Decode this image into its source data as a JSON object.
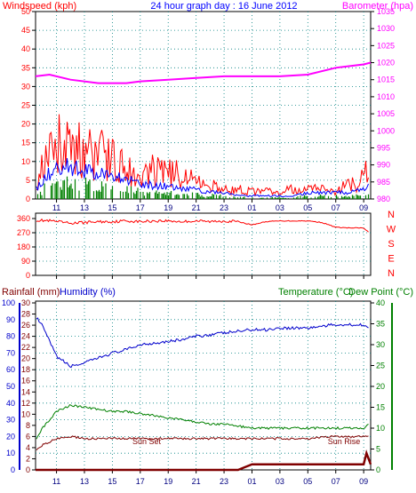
{
  "header": {
    "left_title": "Windspeed (kph)",
    "center_title": "24 hour graph day : 16 June 2012",
    "right_title": "Barometer (hpa)"
  },
  "bottom_header": {
    "rainfall": "Rainfall (mm)",
    "humidity": "Humidity (%)",
    "temperature": "Temperature (°C)",
    "dewpoint": "Dew Point (°C)"
  },
  "annotations": {
    "sunset": "Sun Set",
    "sunrise": "Sun Rise"
  },
  "colors": {
    "gust": "#ff0000",
    "average": "#0000ff",
    "bearing_avg": "#008000",
    "barometer": "#ff00ff",
    "direction": "#ff0000",
    "humidity": "#0000cc",
    "temperature": "#008000",
    "dewpoint": "#800000",
    "rain": "#800000",
    "grid": "#008080"
  },
  "chart_data": [
    {
      "id": "wind",
      "type": "line",
      "time_labels": [
        "11",
        "13",
        "15",
        "17",
        "19",
        "21",
        "23",
        "01",
        "03",
        "05",
        "07",
        "09"
      ],
      "y_left": {
        "label": "Windspeed (kph)",
        "ticks": [
          "0",
          "5",
          "10",
          "15",
          "20",
          "25",
          "30",
          "35",
          "40",
          "45",
          "50"
        ],
        "range": [
          0,
          50
        ]
      },
      "y_right": {
        "label": "Barometer (hpa)",
        "ticks": [
          "980",
          "985",
          "990",
          "995",
          "1000",
          "1005",
          "1010",
          "1015",
          "1020",
          "1025",
          "1030",
          "1035"
        ],
        "range": [
          980,
          1035
        ]
      },
      "series": [
        {
          "name": "gust",
          "envelope": [
            [
              9.5,
              7
            ],
            [
              10.5,
              18
            ],
            [
              11,
              24
            ],
            [
              12,
              22
            ],
            [
              13,
              20
            ],
            [
              14,
              19
            ],
            [
              15,
              17
            ],
            [
              16,
              13
            ],
            [
              17,
              11
            ],
            [
              18,
              12
            ],
            [
              19,
              11
            ],
            [
              20,
              10
            ],
            [
              21,
              8
            ],
            [
              22,
              6
            ],
            [
              23,
              5
            ],
            [
              24,
              4
            ],
            [
              25,
              3
            ],
            [
              26,
              3
            ],
            [
              27,
              3
            ],
            [
              28,
              4
            ],
            [
              29,
              4
            ],
            [
              30,
              4
            ],
            [
              31,
              4
            ],
            [
              32,
              6
            ],
            [
              33,
              9
            ],
            [
              33.5,
              18
            ]
          ]
        },
        {
          "name": "average",
          "envelope": [
            [
              9.5,
              3
            ],
            [
              10.5,
              8
            ],
            [
              11,
              10
            ],
            [
              12,
              10
            ],
            [
              13,
              9
            ],
            [
              14,
              8
            ],
            [
              15,
              7
            ],
            [
              16,
              6
            ],
            [
              17,
              5
            ],
            [
              18,
              4
            ],
            [
              19,
              4
            ],
            [
              20,
              3
            ],
            [
              21,
              3
            ],
            [
              22,
              2
            ],
            [
              23,
              2
            ],
            [
              24,
              1
            ],
            [
              25,
              1
            ],
            [
              26,
              1
            ],
            [
              27,
              1
            ],
            [
              28,
              1
            ],
            [
              29,
              2
            ],
            [
              30,
              2
            ],
            [
              31,
              2
            ],
            [
              32,
              2
            ],
            [
              33,
              3
            ],
            [
              33.5,
              4
            ]
          ]
        },
        {
          "name": "barometer",
          "points": [
            [
              9.5,
              1016
            ],
            [
              10.5,
              1016.5
            ],
            [
              12,
              1015
            ],
            [
              14,
              1014
            ],
            [
              15,
              1014
            ],
            [
              16,
              1014
            ],
            [
              17,
              1014.5
            ],
            [
              19,
              1015
            ],
            [
              21,
              1015.5
            ],
            [
              23,
              1016
            ],
            [
              25,
              1016
            ],
            [
              27,
              1016
            ],
            [
              29,
              1016.5
            ],
            [
              31,
              1018.5
            ],
            [
              33,
              1019.5
            ],
            [
              33.5,
              1020
            ]
          ]
        }
      ]
    },
    {
      "id": "direction",
      "type": "line",
      "time_labels": [
        "11",
        "13",
        "15",
        "17",
        "19",
        "21",
        "23",
        "01",
        "03",
        "05",
        "07",
        "09"
      ],
      "y_left": {
        "ticks": [
          "0",
          "90",
          "180",
          "270",
          "360"
        ],
        "range": [
          0,
          360
        ]
      },
      "compass": [
        "N",
        "W",
        "S",
        "E",
        "N"
      ],
      "series": [
        {
          "name": "direction",
          "points": [
            [
              9.5,
              350
            ],
            [
              10.5,
              345
            ],
            [
              11,
              340
            ],
            [
              12,
              330
            ],
            [
              13,
              335
            ],
            [
              14,
              340
            ],
            [
              15,
              340
            ],
            [
              16,
              345
            ],
            [
              17,
              340
            ],
            [
              18,
              345
            ],
            [
              19,
              345
            ],
            [
              20,
              340
            ],
            [
              21,
              345
            ],
            [
              22,
              340
            ],
            [
              23,
              345
            ],
            [
              24,
              340
            ],
            [
              25,
              320
            ],
            [
              26,
              340
            ],
            [
              27,
              345
            ],
            [
              28,
              345
            ],
            [
              29,
              345
            ],
            [
              30,
              335
            ],
            [
              31,
              305
            ],
            [
              32,
              300
            ],
            [
              33,
              300
            ],
            [
              33.5,
              260
            ]
          ]
        }
      ]
    },
    {
      "id": "temp_hum",
      "type": "line",
      "time_labels": [
        "11",
        "13",
        "15",
        "17",
        "19",
        "21",
        "23",
        "01",
        "03",
        "05",
        "07",
        "09"
      ],
      "y_humidity": {
        "ticks": [
          "0",
          "10",
          "20",
          "30",
          "40",
          "50",
          "60",
          "70",
          "80",
          "90",
          "100"
        ],
        "range": [
          0,
          100
        ]
      },
      "y_rain": {
        "ticks": [
          "0",
          "2",
          "4",
          "6",
          "8",
          "10",
          "12",
          "14",
          "16",
          "18",
          "20",
          "22",
          "24",
          "26",
          "28",
          "30"
        ],
        "range": [
          0,
          30
        ]
      },
      "y_temp": {
        "ticks": [
          "0",
          "5",
          "10",
          "15",
          "20",
          "25",
          "30",
          "35",
          "40"
        ],
        "range": [
          0,
          40
        ]
      },
      "series": [
        {
          "name": "humidity",
          "points": [
            [
              9.5,
              92
            ],
            [
              10,
              86
            ],
            [
              11,
              68
            ],
            [
              12,
              62
            ],
            [
              13,
              64
            ],
            [
              14,
              67
            ],
            [
              15,
              70
            ],
            [
              16,
              72
            ],
            [
              17,
              75
            ],
            [
              18,
              76
            ],
            [
              19,
              77
            ],
            [
              20,
              78
            ],
            [
              21,
              80
            ],
            [
              22,
              81
            ],
            [
              23,
              82
            ],
            [
              24,
              83
            ],
            [
              25,
              84
            ],
            [
              26,
              84
            ],
            [
              27,
              85
            ],
            [
              28,
              85
            ],
            [
              29,
              85
            ],
            [
              30,
              86
            ],
            [
              31,
              87
            ],
            [
              32,
              87
            ],
            [
              33,
              87
            ],
            [
              33.5,
              84
            ]
          ]
        },
        {
          "name": "temperature",
          "points": [
            [
              9.5,
              7
            ],
            [
              10,
              10
            ],
            [
              11,
              14
            ],
            [
              12,
              15.5
            ],
            [
              13,
              15
            ],
            [
              14,
              14.5
            ],
            [
              15,
              14
            ],
            [
              16,
              14
            ],
            [
              17,
              13.5
            ],
            [
              18,
              13
            ],
            [
              19,
              12.5
            ],
            [
              20,
              12
            ],
            [
              21,
              11.5
            ],
            [
              22,
              11
            ],
            [
              23,
              11
            ],
            [
              24,
              10.5
            ],
            [
              25,
              10
            ],
            [
              26,
              10
            ],
            [
              27,
              10
            ],
            [
              28,
              10
            ],
            [
              29,
              10
            ],
            [
              30,
              10
            ],
            [
              31,
              10
            ],
            [
              32,
              10
            ],
            [
              33,
              10
            ],
            [
              33.5,
              11.5
            ]
          ]
        },
        {
          "name": "dewpoint",
          "points": [
            [
              9.5,
              4.5
            ],
            [
              10,
              6
            ],
            [
              11,
              7.5
            ],
            [
              12,
              8
            ],
            [
              13,
              7.5
            ],
            [
              14,
              7.5
            ],
            [
              15,
              7.5
            ],
            [
              16,
              7.5
            ],
            [
              17,
              7.5
            ],
            [
              18,
              7.5
            ],
            [
              19,
              7.5
            ],
            [
              20,
              7.5
            ],
            [
              21,
              7.5
            ],
            [
              22,
              7.5
            ],
            [
              23,
              7.5
            ],
            [
              24,
              7.5
            ],
            [
              25,
              7.5
            ],
            [
              26,
              7.5
            ],
            [
              27,
              7.5
            ],
            [
              28,
              7.5
            ],
            [
              29,
              7.5
            ],
            [
              30,
              7.8
            ],
            [
              31,
              8
            ],
            [
              32,
              8
            ],
            [
              33,
              8
            ],
            [
              33.5,
              8
            ]
          ]
        },
        {
          "name": "rain",
          "points": [
            [
              9.5,
              0
            ],
            [
              24,
              0
            ],
            [
              24.5,
              0.5
            ],
            [
              25,
              1
            ],
            [
              33,
              1
            ],
            [
              33.2,
              3
            ],
            [
              33.5,
              1
            ]
          ]
        }
      ]
    }
  ]
}
